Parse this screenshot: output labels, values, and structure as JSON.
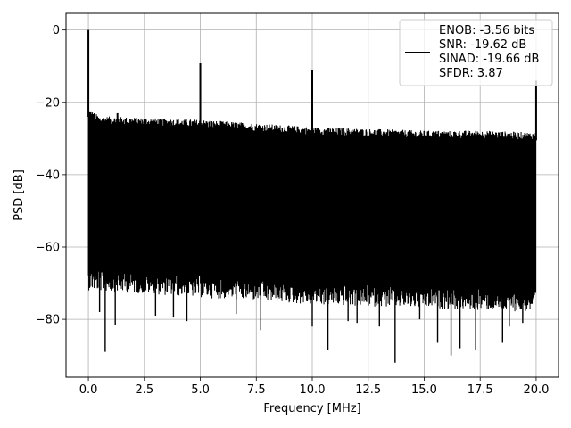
{
  "chart_data": {
    "type": "line",
    "title": "",
    "xlabel": "Frequency [MHz]",
    "ylabel": "PSD [dB]",
    "xlim": [
      -0.999,
      20.999
    ],
    "ylim": [
      -96.0,
      4.6
    ],
    "xticks": [
      0.0,
      2.5,
      5.0,
      7.5,
      10.0,
      12.5,
      15.0,
      17.5,
      20.0
    ],
    "xtick_labels": [
      "0.0",
      "2.5",
      "5.0",
      "7.5",
      "10.0",
      "12.5",
      "15.0",
      "17.5",
      "20.0"
    ],
    "yticks": [
      0,
      -20,
      -40,
      -60,
      -80
    ],
    "ytick_labels": [
      "0",
      "−20",
      "−40",
      "−60",
      "−80"
    ],
    "grid": true,
    "legend": {
      "placement": "upper-right",
      "lines": [
        "ENOB: -3.56 bits",
        "SNR: -19.62 dB",
        "SINAD: -19.66 dB",
        "SFDR: 3.87"
      ]
    },
    "series": [
      {
        "color": "#000000",
        "spurs": [
          {
            "x": 0.0,
            "y": 0.0
          },
          {
            "x": 1.3,
            "y": -23.0
          },
          {
            "x": 2.5,
            "y": -24.5
          },
          {
            "x": 5.0,
            "y": -9.2
          },
          {
            "x": 10.0,
            "y": -11.0
          },
          {
            "x": 20.0,
            "y": -14.0
          }
        ],
        "upper_envelope": [
          {
            "x": 0.0,
            "y": -24.0
          },
          {
            "x": 0.5,
            "y": -26.0
          },
          {
            "x": 2.5,
            "y": -26.5
          },
          {
            "x": 5.0,
            "y": -27.0
          },
          {
            "x": 7.5,
            "y": -28.0
          },
          {
            "x": 10.0,
            "y": -29.0
          },
          {
            "x": 12.5,
            "y": -29.5
          },
          {
            "x": 15.0,
            "y": -30.0
          },
          {
            "x": 17.5,
            "y": -30.0
          },
          {
            "x": 20.0,
            "y": -30.5
          }
        ],
        "lower_envelope": [
          {
            "x": 0.0,
            "y": -66.0
          },
          {
            "x": 2.5,
            "y": -67.0
          },
          {
            "x": 5.0,
            "y": -68.0
          },
          {
            "x": 7.5,
            "y": -69.0
          },
          {
            "x": 10.0,
            "y": -70.0
          },
          {
            "x": 12.5,
            "y": -70.5
          },
          {
            "x": 15.0,
            "y": -71.0
          },
          {
            "x": 17.5,
            "y": -71.5
          },
          {
            "x": 20.0,
            "y": -72.0
          }
        ],
        "deep_nulls": [
          {
            "x": 0.5,
            "y": -78.0
          },
          {
            "x": 0.75,
            "y": -89.0
          },
          {
            "x": 1.2,
            "y": -81.5
          },
          {
            "x": 3.0,
            "y": -79.0
          },
          {
            "x": 3.8,
            "y": -79.5
          },
          {
            "x": 4.4,
            "y": -80.5
          },
          {
            "x": 6.6,
            "y": -78.5
          },
          {
            "x": 7.7,
            "y": -83.0
          },
          {
            "x": 10.0,
            "y": -82.0
          },
          {
            "x": 10.7,
            "y": -88.5
          },
          {
            "x": 11.6,
            "y": -80.5
          },
          {
            "x": 12.0,
            "y": -81.0
          },
          {
            "x": 13.0,
            "y": -82.0
          },
          {
            "x": 13.7,
            "y": -92.0
          },
          {
            "x": 14.8,
            "y": -80.0
          },
          {
            "x": 15.6,
            "y": -86.5
          },
          {
            "x": 16.2,
            "y": -90.0
          },
          {
            "x": 16.6,
            "y": -88.0
          },
          {
            "x": 17.3,
            "y": -88.5
          },
          {
            "x": 18.5,
            "y": -86.5
          },
          {
            "x": 18.8,
            "y": -82.0
          },
          {
            "x": 19.4,
            "y": -81.0
          }
        ]
      }
    ]
  }
}
